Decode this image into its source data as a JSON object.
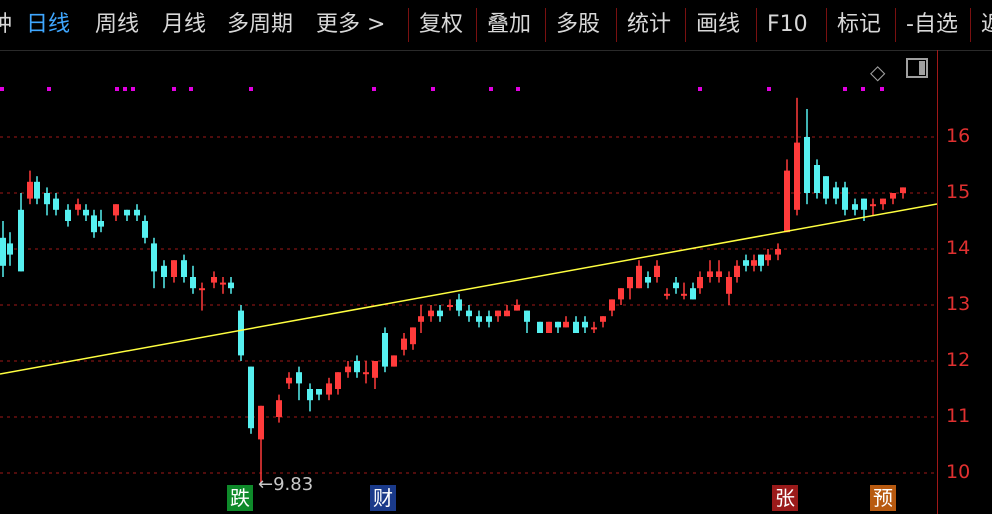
{
  "toolbar": {
    "items": [
      {
        "label": "钟"
      },
      {
        "label": "日线"
      },
      {
        "label": "周线"
      },
      {
        "label": "月线"
      },
      {
        "label": "多周期"
      },
      {
        "label": "更多 >"
      },
      {
        "label": "复权"
      },
      {
        "label": "叠加"
      },
      {
        "label": "多股"
      },
      {
        "label": "统计"
      },
      {
        "label": "画线"
      },
      {
        "label": "F10"
      },
      {
        "label": "标记"
      },
      {
        "label": "-自选"
      },
      {
        "label": "返"
      }
    ]
  },
  "colors": {
    "up": "#ff3b3b",
    "down": "#56f0f0",
    "trendline": "#ffff40",
    "grid": "#a01818",
    "marker": "#e000e0"
  },
  "price_axis": {
    "ticks": [
      "16",
      "15",
      "14",
      "13",
      "12",
      "11",
      "10"
    ]
  },
  "annotations": {
    "low_label": "←9.83"
  },
  "event_tags": [
    {
      "text": "跌",
      "color": "#0e8a2a"
    },
    {
      "text": "财",
      "color": "#1a3a8a"
    },
    {
      "text": "张",
      "color": "#9a1a1a"
    },
    {
      "text": "预",
      "color": "#b85a10"
    }
  ],
  "icons": {
    "diamond": "diamond-icon",
    "panel": "panel-toggle-icon"
  }
}
